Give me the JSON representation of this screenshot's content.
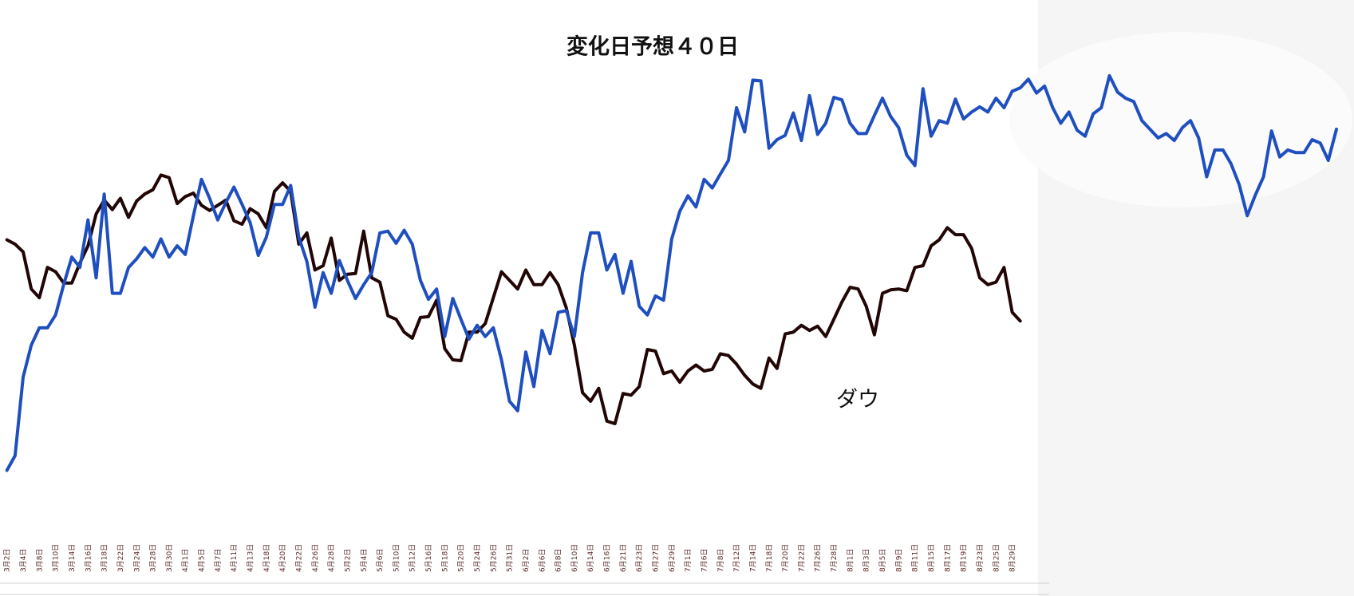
{
  "chart_data": {
    "type": "line",
    "title": "変化日予想４０日",
    "categories": [
      "3月2日",
      null,
      "3月4日",
      null,
      "3月8日",
      null,
      "3月10日",
      null,
      "3月14日",
      null,
      "3月16日",
      null,
      "3月18日",
      null,
      "3月22日",
      null,
      "3月24日",
      null,
      "3月28日",
      null,
      "3月30日",
      null,
      "4月1日",
      null,
      "4月5日",
      null,
      "4月7日",
      null,
      "4月11日",
      null,
      "4月13日",
      null,
      "4月18日",
      null,
      "4月20日",
      null,
      "4月22日",
      null,
      "4月26日",
      null,
      "4月28日",
      null,
      "5月2日",
      null,
      "5月4日",
      null,
      "5月6日",
      null,
      "5月10日",
      null,
      "5月12日",
      null,
      "5月16日",
      null,
      "5月18日",
      null,
      "5月20日",
      null,
      "5月24日",
      null,
      "5月26日",
      null,
      "5月31日",
      null,
      "6月2日",
      null,
      "6月6日",
      null,
      "6月8日",
      null,
      "6月10日",
      null,
      "6月14日",
      null,
      "6月16日",
      null,
      "6月21日",
      null,
      "6月23日",
      null,
      "6月27日",
      null,
      "6月29日",
      null,
      "7月1日",
      null,
      "7月6日",
      null,
      "7月8日",
      null,
      "7月12日",
      null,
      "7月14日",
      null,
      "7月18日",
      null,
      "7月20日",
      null,
      "7月22日",
      null,
      "7月26日",
      null,
      "7月28日",
      null,
      "8月1日",
      null,
      "8月3日",
      null,
      "8月5日",
      null,
      "8月9日",
      null,
      "8月11日",
      null,
      "8月15日",
      null,
      "8月17日",
      null,
      "8月19日",
      null,
      "8月23日",
      null,
      "8月25日",
      null,
      "8月29日",
      null,
      null,
      null,
      null,
      null,
      null,
      null,
      null,
      null,
      null,
      null,
      null,
      null,
      null,
      null,
      null,
      null,
      null,
      null,
      null,
      null,
      null,
      null,
      null,
      null,
      null,
      null,
      null,
      null,
      null,
      null,
      null,
      null,
      null,
      null,
      null,
      null,
      null,
      null,
      null
    ],
    "series": [
      {
        "color": "#1f4fbf",
        "values": [
          55,
          72,
          163,
          200,
          220,
          220,
          235,
          270,
          302,
          290,
          345,
          278,
          375,
          260,
          260,
          290,
          300,
          313,
          302,
          323,
          302,
          315,
          305,
          350,
          392,
          370,
          345,
          365,
          383,
          363,
          342,
          304,
          325,
          363,
          363,
          385,
          325,
          297,
          244,
          284,
          260,
          298,
          275,
          254,
          270,
          284,
          330,
          332,
          318,
          333,
          317,
          275,
          253,
          265,
          210,
          254,
          230,
          207,
          223,
          210,
          220,
          183,
          135,
          124,
          192,
          152,
          217,
          190,
          238,
          240,
          210,
          284,
          330,
          330,
          287,
          305,
          260,
          297,
          245,
          235,
          257,
          252,
          323,
          355,
          373,
          360,
          392,
          382,
          398,
          414,
          475,
          447,
          507,
          506,
          428,
          438,
          443,
          469,
          437,
          489,
          444,
          457,
          487,
          484,
          457,
          445,
          445,
          466,
          486,
          465,
          452,
          420,
          408,
          497,
          442,
          460,
          457,
          485,
          462,
          470,
          476,
          470,
          486,
          475,
          494,
          498,
          508,
          492,
          500,
          475,
          457,
          470,
          449,
          442,
          468,
          475,
          512,
          493,
          486,
          482,
          460,
          450,
          440,
          445,
          437,
          452,
          460,
          440,
          395,
          426,
          426,
          410,
          386,
          350,
          374,
          395,
          448,
          418,
          426,
          423,
          423,
          438,
          434,
          414,
          450
        ]
      },
      {
        "name": "ダウ",
        "color": "#220505",
        "values": [
          322,
          317,
          308,
          265,
          255,
          290,
          285,
          272,
          272,
          295,
          315,
          352,
          368,
          357,
          370,
          348,
          367,
          375,
          380,
          397,
          394,
          364,
          372,
          376,
          362,
          356,
          362,
          368,
          344,
          340,
          358,
          352,
          336,
          378,
          388,
          378,
          317,
          330,
          287,
          292,
          324,
          275,
          282,
          283,
          332,
          278,
          273,
          234,
          230,
          215,
          208,
          232,
          233,
          252,
          196,
          183,
          182,
          215,
          215,
          225,
          255,
          285,
          275,
          265,
          287,
          270,
          270,
          284,
          270,
          243,
          200,
          145,
          135,
          150,
          112,
          109,
          144,
          142,
          152,
          195,
          193,
          167,
          170,
          157,
          170,
          177,
          170,
          172,
          190,
          188,
          178,
          165,
          155,
          150,
          185,
          173,
          213,
          215,
          223,
          217,
          222,
          210,
          230,
          250,
          267,
          265,
          245,
          212,
          260,
          264,
          265,
          263,
          290,
          292,
          315,
          322,
          336,
          328,
          328,
          312,
          278,
          270,
          273,
          290,
          238,
          228,
          null,
          null,
          null,
          null,
          null,
          null,
          null,
          null,
          null,
          null,
          null,
          null,
          null,
          null,
          null,
          null,
          null,
          null,
          null,
          null,
          null,
          null,
          null,
          null,
          null,
          null,
          null,
          null,
          null,
          null,
          null,
          null,
          null,
          null,
          null,
          null,
          null,
          null,
          null
        ]
      }
    ],
    "ylim": [
      0,
      560
    ]
  }
}
